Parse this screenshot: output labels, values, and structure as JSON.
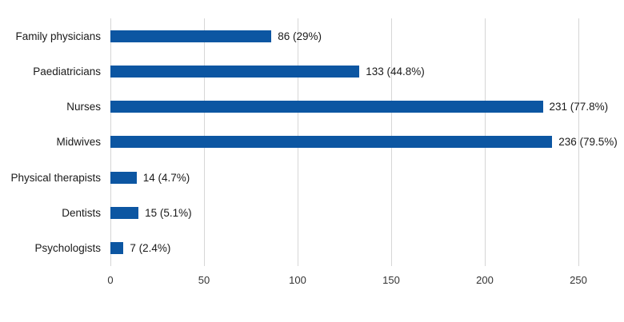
{
  "chart_data": {
    "type": "bar",
    "orientation": "horizontal",
    "title": "",
    "xlabel": "",
    "ylabel": "",
    "categories": [
      "Family physicians",
      "Paediatricians",
      "Nurses",
      "Midwives",
      "Physical therapists",
      "Dentists",
      "Psychologists"
    ],
    "values": [
      86,
      133,
      231,
      236,
      14,
      15,
      7
    ],
    "value_labels": [
      "86 (29%)",
      "133 (44.8%)",
      "231 (77.8%)",
      "236 (79.5%)",
      "14 (4.7%)",
      "15 (5.1%)",
      "7 (2.4%)"
    ],
    "x_ticks": [
      0,
      50,
      100,
      150,
      200,
      250
    ],
    "xlim": [
      0,
      250
    ],
    "grid": true,
    "legend": false,
    "bar_color": "#0c56a2",
    "gridline_color": "#d6d6d6",
    "label_color": "#1a1a1a",
    "tick_color": "#333333",
    "background": "#ffffff"
  }
}
